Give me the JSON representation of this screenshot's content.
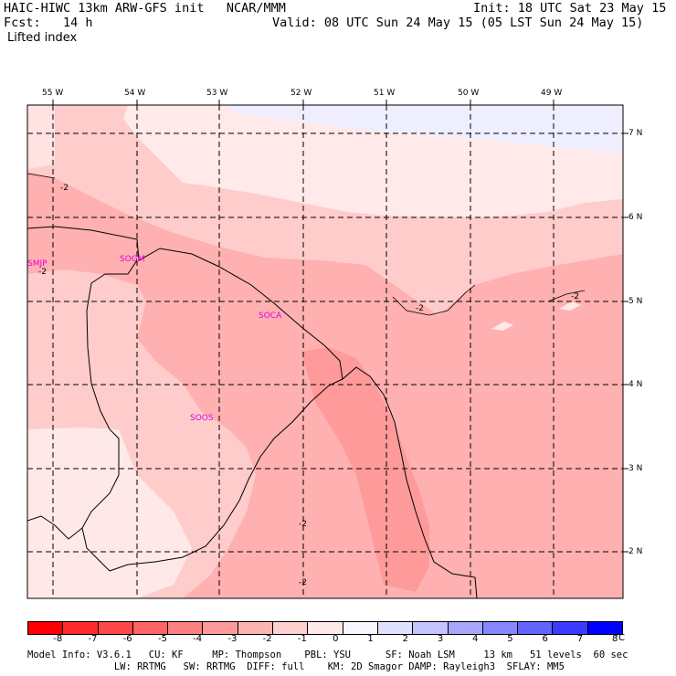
{
  "header": {
    "title_left": "HAIC-HIWC 13km ARW-GFS init   NCAR/MMM",
    "forecast": "Fcst:   14 h",
    "field": "Lifted index",
    "init": "Init: 18 UTC Sat 23 May 15",
    "valid": "Valid: 08 UTC Sun 24 May 15 (05 LST Sun 24 May 15)"
  },
  "longitude_labels": [
    "55 W",
    "54 W",
    "53 W",
    "52 W",
    "51 W",
    "50 W",
    "49 W"
  ],
  "latitude_labels": [
    "7 N",
    "6 N",
    "5 N",
    "4 N",
    "3 N",
    "2 N"
  ],
  "stations": [
    "SMJP",
    "SOGM",
    "SOCA",
    "SOOS"
  ],
  "contour_labels": [
    "-2",
    "-2",
    "-2",
    "-2",
    "-2",
    "-2"
  ],
  "colorbar": {
    "ticks": [
      "-8",
      "-7",
      "-6",
      "-5",
      "-4",
      "-3",
      "-2",
      "-1",
      "0",
      "1",
      "2",
      "3",
      "4",
      "5",
      "6",
      "7",
      "8"
    ],
    "unit": "°C",
    "colors": [
      "#ff0000",
      "#ff2a2a",
      "#ff4747",
      "#ff6363",
      "#ff8080",
      "#ff9a9a",
      "#ffb4b4",
      "#ffcfcf",
      "#ffe8e8",
      "#f7f7ff",
      "#e0e0ff",
      "#c4c4ff",
      "#a6a6ff",
      "#8787ff",
      "#6363ff",
      "#3b3bff",
      "#0000ff"
    ]
  },
  "footer": {
    "line1": "Model Info: V3.6.1   CU: KF     MP: Thompson    PBL: YSU      SF: Noah LSM     13 km   51 levels  60 sec",
    "line2": "               LW: RRTMG   SW: RRTMG  DIFF: full    KM: 2D Smagor DAMP: Rayleigh3  SFLAY: MM5"
  }
}
